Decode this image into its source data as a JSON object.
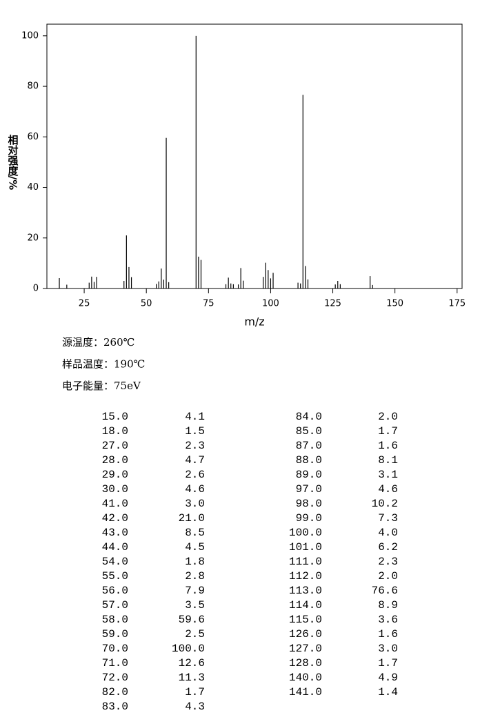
{
  "chart_data": {
    "type": "bar",
    "xlabel": "m/z",
    "ylabel": "相对强度/%",
    "color": "#000000",
    "x": [
      15,
      18,
      27,
      28,
      29,
      30,
      41,
      42,
      43,
      44,
      54,
      55,
      56,
      57,
      58,
      59,
      70,
      71,
      72,
      82,
      83,
      84,
      85,
      87,
      88,
      89,
      97,
      98,
      99,
      100,
      101,
      111,
      112,
      113,
      114,
      115,
      126,
      127,
      128,
      140,
      141
    ],
    "values": [
      4.1,
      1.5,
      2.3,
      4.7,
      2.6,
      4.6,
      3.0,
      21.0,
      8.5,
      4.5,
      1.8,
      2.8,
      7.9,
      3.5,
      59.6,
      2.5,
      100.0,
      12.6,
      11.3,
      1.7,
      4.3,
      2.0,
      1.7,
      1.6,
      8.1,
      3.1,
      4.6,
      10.2,
      7.3,
      4.0,
      6.2,
      2.3,
      2.0,
      76.6,
      8.9,
      3.6,
      1.6,
      3.0,
      1.7,
      4.9,
      1.4
    ],
    "xlim": [
      10,
      177
    ],
    "xticks": [
      25,
      50,
      75,
      100,
      125,
      150,
      175
    ],
    "ylim": [
      0,
      104.6
    ],
    "yticks": [
      0,
      20,
      40,
      60,
      80,
      100
    ]
  },
  "conditions": [
    "源温度：260℃",
    "样品温度：190℃",
    "电子能量：75eV"
  ],
  "table": {
    "left": [
      [
        "15.0",
        "4.1"
      ],
      [
        "18.0",
        "1.5"
      ],
      [
        "27.0",
        "2.3"
      ],
      [
        "28.0",
        "4.7"
      ],
      [
        "29.0",
        "2.6"
      ],
      [
        "30.0",
        "4.6"
      ],
      [
        "41.0",
        "3.0"
      ],
      [
        "42.0",
        "21.0"
      ],
      [
        "43.0",
        "8.5"
      ],
      [
        "44.0",
        "4.5"
      ],
      [
        "54.0",
        "1.8"
      ],
      [
        "55.0",
        "2.8"
      ],
      [
        "56.0",
        "7.9"
      ],
      [
        "57.0",
        "3.5"
      ],
      [
        "58.0",
        "59.6"
      ],
      [
        "59.0",
        "2.5"
      ],
      [
        "70.0",
        "100.0"
      ],
      [
        "71.0",
        "12.6"
      ],
      [
        "72.0",
        "11.3"
      ],
      [
        "82.0",
        "1.7"
      ],
      [
        "83.0",
        "4.3"
      ]
    ],
    "right": [
      [
        "84.0",
        "2.0"
      ],
      [
        "85.0",
        "1.7"
      ],
      [
        "87.0",
        "1.6"
      ],
      [
        "88.0",
        "8.1"
      ],
      [
        "89.0",
        "3.1"
      ],
      [
        "97.0",
        "4.6"
      ],
      [
        "98.0",
        "10.2"
      ],
      [
        "99.0",
        "7.3"
      ],
      [
        "100.0",
        "4.0"
      ],
      [
        "101.0",
        "6.2"
      ],
      [
        "111.0",
        "2.3"
      ],
      [
        "112.0",
        "2.0"
      ],
      [
        "113.0",
        "76.6"
      ],
      [
        "114.0",
        "8.9"
      ],
      [
        "115.0",
        "3.6"
      ],
      [
        "126.0",
        "1.6"
      ],
      [
        "127.0",
        "3.0"
      ],
      [
        "128.0",
        "1.7"
      ],
      [
        "140.0",
        "4.9"
      ],
      [
        "141.0",
        "1.4"
      ]
    ]
  }
}
